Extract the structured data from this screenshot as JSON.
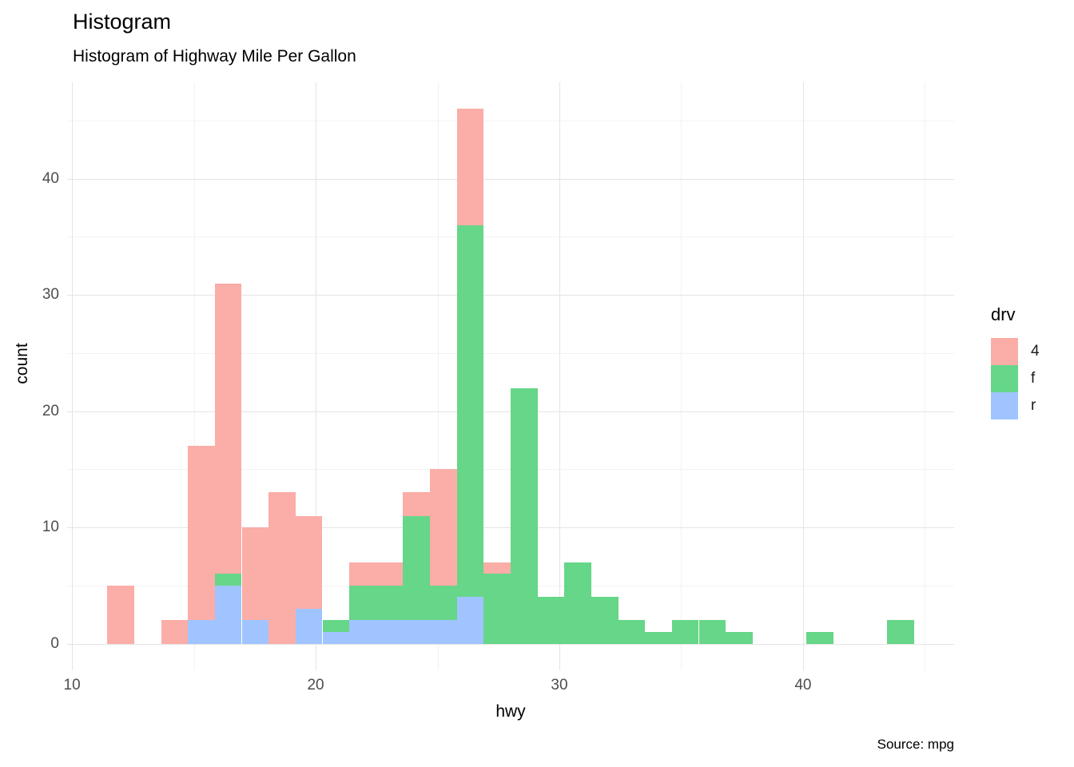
{
  "title": "Histogram",
  "subtitle": "Histogram of Highway Mile Per Gallon",
  "caption": "Source: mpg",
  "legend": {
    "title": "drv",
    "entries": [
      {
        "label": "4",
        "color": "#FBADA7"
      },
      {
        "label": "f",
        "color": "#66D688"
      },
      {
        "label": "r",
        "color": "#A0C4FF"
      }
    ]
  },
  "chart_data": {
    "type": "bar",
    "subtype": "stacked-histogram",
    "title": "Histogram",
    "subtitle": "Histogram of Highway Mile Per Gallon",
    "xlabel": "hwy",
    "ylabel": "count",
    "source": "Source: mpg",
    "xlim": [
      9.8,
      46.2
    ],
    "ylim": [
      -2.3,
      48.3
    ],
    "x_ticks": [
      10,
      20,
      30,
      40
    ],
    "x_minor": [
      15,
      25,
      35,
      45
    ],
    "y_ticks": [
      0,
      10,
      20,
      30,
      40
    ],
    "y_minor": [
      5,
      15,
      25,
      35,
      45
    ],
    "grid": "on",
    "legend_position": "right",
    "binwidth": 1.103,
    "bins": [
      12,
      14.21,
      15.31,
      16.41,
      17.52,
      18.62,
      19.72,
      20.83,
      21.93,
      23.03,
      24.14,
      25.24,
      26.34,
      27.45,
      28.55,
      29.66,
      30.76,
      31.86,
      32.97,
      34.07,
      35.17,
      36.28,
      37.38,
      40.69,
      44.0
    ],
    "series": [
      {
        "name": "r",
        "color": "#A0C4FF",
        "values": [
          0,
          0,
          2,
          5,
          2,
          0,
          3,
          1,
          2,
          2,
          2,
          2,
          4,
          0,
          0,
          0,
          0,
          0,
          0,
          0,
          0,
          0,
          0,
          0,
          0
        ]
      },
      {
        "name": "f",
        "color": "#66D688",
        "values": [
          0,
          0,
          0,
          1,
          0,
          0,
          0,
          1,
          3,
          3,
          9,
          3,
          32,
          6,
          22,
          4,
          7,
          4,
          2,
          1,
          2,
          2,
          1,
          1,
          2
        ]
      },
      {
        "name": "4",
        "color": "#FBADA7",
        "values": [
          5,
          2,
          15,
          25,
          8,
          13,
          8,
          0,
          2,
          2,
          2,
          10,
          10,
          1,
          0,
          0,
          0,
          0,
          0,
          0,
          0,
          0,
          0,
          0,
          0
        ]
      }
    ],
    "stack_order_bottom_to_top": [
      "r",
      "f",
      "4"
    ],
    "totals": {
      "4": 103,
      "f": 106,
      "r": 25
    }
  }
}
